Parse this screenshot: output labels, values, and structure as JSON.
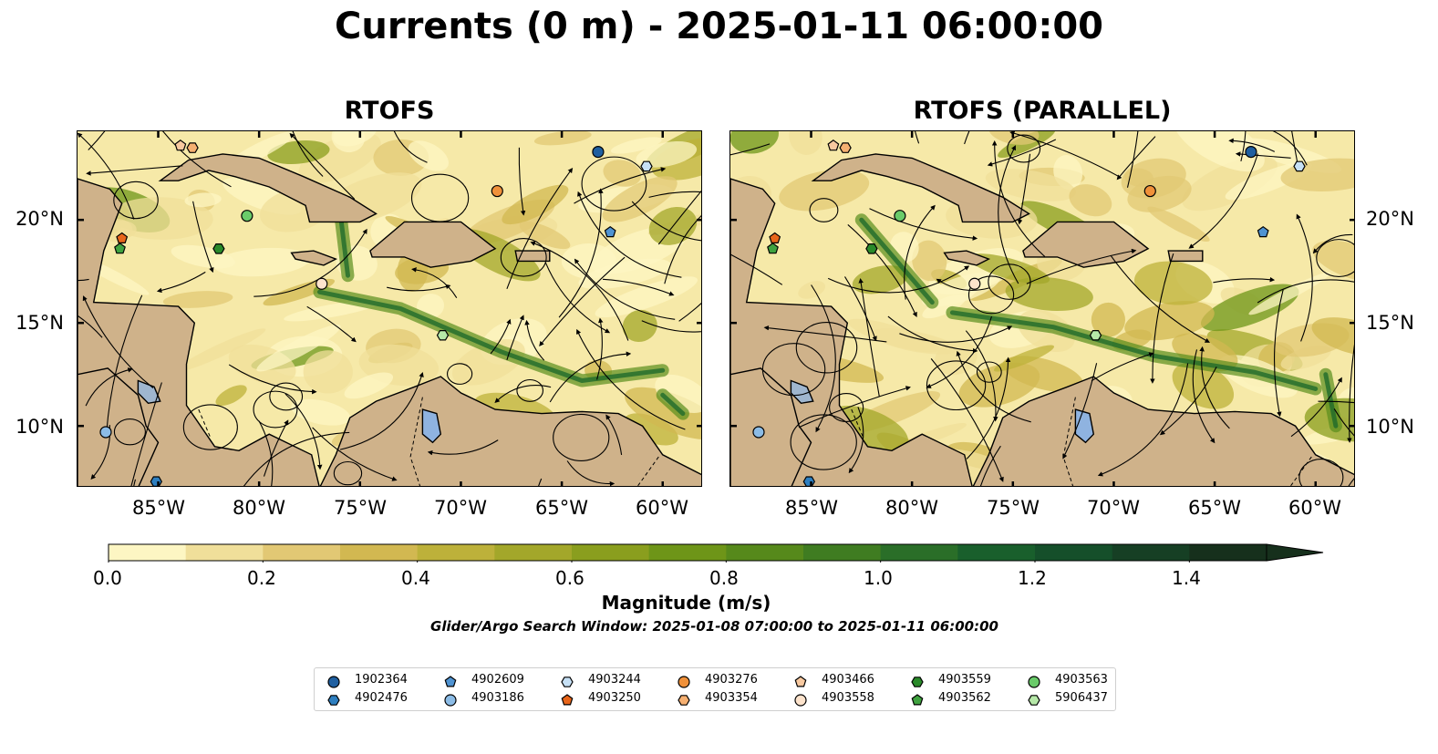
{
  "title": "Currents (0 m) - 2025-01-11 06:00:00",
  "panels": [
    {
      "title": "RTOFS"
    },
    {
      "title": "RTOFS (PARALLEL)"
    }
  ],
  "lat_ticks": [
    "20°N",
    "15°N",
    "10°N"
  ],
  "lon_ticks": [
    "85°W",
    "80°W",
    "75°W",
    "70°W",
    "65°W",
    "60°W"
  ],
  "map_extent": {
    "lon_min": -89,
    "lon_max": -58,
    "lat_min": 7,
    "lat_max": 24.3
  },
  "colorbar": {
    "title": "Magnitude (m/s)",
    "tick_labels": [
      "0.0",
      "0.2",
      "0.4",
      "0.6",
      "0.8",
      "1.0",
      "1.2",
      "1.4"
    ],
    "range": [
      0,
      1.5
    ],
    "extend": "max",
    "colors": [
      "#fdf6c3",
      "#f0df9a",
      "#e2c874",
      "#d2b851",
      "#bdb13a",
      "#a3a72a",
      "#8a9e1e",
      "#6e9518",
      "#56891b",
      "#3f7c21",
      "#2a6e28",
      "#195f2c",
      "#154f2a",
      "#163f24",
      "#16301c"
    ]
  },
  "search_window": "Glider/Argo Search Window: 2025-01-08 07:00:00 to 2025-01-11 06:00:00",
  "legend": [
    {
      "id": "1902364",
      "marker": "circle",
      "color": "#1f5fa0"
    },
    {
      "id": "4902476",
      "marker": "hexagon",
      "color": "#2e7fc0"
    },
    {
      "id": "4902609",
      "marker": "pentagon",
      "color": "#4f93d2"
    },
    {
      "id": "4903186",
      "marker": "circle",
      "color": "#8cbce6"
    },
    {
      "id": "4903244",
      "marker": "hexagon",
      "color": "#c6e0f5"
    },
    {
      "id": "4903250",
      "marker": "pentagon",
      "color": "#e8651a"
    },
    {
      "id": "4903276",
      "marker": "circle",
      "color": "#f0913a"
    },
    {
      "id": "4903354",
      "marker": "hexagon",
      "color": "#f6b071"
    },
    {
      "id": "4903466",
      "marker": "pentagon",
      "color": "#f8c9a0"
    },
    {
      "id": "4903558",
      "marker": "circle",
      "color": "#fde3cc"
    },
    {
      "id": "4903559",
      "marker": "hexagon",
      "color": "#2a8a2a"
    },
    {
      "id": "4903562",
      "marker": "pentagon",
      "color": "#3fa23f"
    },
    {
      "id": "4903563",
      "marker": "circle",
      "color": "#6acb6a"
    },
    {
      "id": "5906437",
      "marker": "hexagon",
      "color": "#b6e8a8"
    }
  ],
  "floats": [
    {
      "id": "1902364",
      "lon": -63.2,
      "lat": 23.3
    },
    {
      "id": "4902476",
      "lon": -85.1,
      "lat": 7.3
    },
    {
      "id": "4902609",
      "lon": -62.6,
      "lat": 19.4
    },
    {
      "id": "4903186",
      "lon": -87.6,
      "lat": 9.7
    },
    {
      "id": "4903244",
      "lon": -60.8,
      "lat": 22.6
    },
    {
      "id": "4903250",
      "lon": -86.8,
      "lat": 19.1
    },
    {
      "id": "4903276",
      "lon": -68.2,
      "lat": 21.4
    },
    {
      "id": "4903354",
      "lon": -83.3,
      "lat": 23.5
    },
    {
      "id": "4903466",
      "lon": -83.9,
      "lat": 23.6
    },
    {
      "id": "4903558",
      "lon": -76.9,
      "lat": 16.9
    },
    {
      "id": "4903559",
      "lon": -82.0,
      "lat": 18.6
    },
    {
      "id": "4903562",
      "lon": -86.9,
      "lat": 18.6
    },
    {
      "id": "4903563",
      "lon": -80.6,
      "lat": 20.2
    },
    {
      "id": "5906437",
      "lon": -70.9,
      "lat": 14.4
    }
  ]
}
